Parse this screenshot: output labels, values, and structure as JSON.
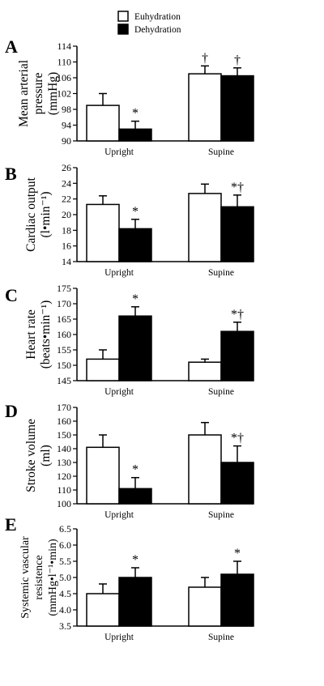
{
  "legend": {
    "euhydration": "Euhydration",
    "dehydration": "Dehydration"
  },
  "colors": {
    "euhydration_fill": "#ffffff",
    "dehydration_fill": "#000000",
    "stroke": "#000000"
  },
  "chart_data": [
    {
      "panel": "A",
      "type": "bar",
      "ylabel": [
        "Mean arterial",
        "pressure",
        "(mmHg)"
      ],
      "categories": [
        "Upright",
        "Supine"
      ],
      "ylim": [
        90,
        114
      ],
      "yticks": [
        90,
        94,
        98,
        102,
        106,
        110,
        114
      ],
      "series": [
        {
          "name": "Euhydration",
          "values": [
            99,
            107
          ],
          "errors": [
            3,
            2
          ]
        },
        {
          "name": "Dehydration",
          "values": [
            93,
            106.5
          ],
          "errors": [
            2,
            2
          ]
        }
      ],
      "annotations": [
        [
          "",
          "†"
        ],
        [
          "*",
          "†"
        ]
      ]
    },
    {
      "panel": "B",
      "type": "bar",
      "ylabel": [
        "Cardiac output",
        "(l•min⁻¹)"
      ],
      "categories": [
        "Upright",
        "Supine"
      ],
      "ylim": [
        14,
        26
      ],
      "yticks": [
        14,
        16,
        18,
        20,
        22,
        24,
        26
      ],
      "series": [
        {
          "name": "Euhydration",
          "values": [
            21.3,
            22.7
          ],
          "errors": [
            1.1,
            1.2
          ]
        },
        {
          "name": "Dehydration",
          "values": [
            18.2,
            21.0
          ],
          "errors": [
            1.2,
            1.5
          ]
        }
      ],
      "annotations": [
        [
          "",
          ""
        ],
        [
          "*",
          "*†"
        ]
      ]
    },
    {
      "panel": "C",
      "type": "bar",
      "ylabel": [
        "Heart rate",
        "(beats•min⁻¹)"
      ],
      "categories": [
        "Upright",
        "Supine"
      ],
      "ylim": [
        145,
        175
      ],
      "yticks": [
        145,
        150,
        155,
        160,
        165,
        170,
        175
      ],
      "series": [
        {
          "name": "Euhydration",
          "values": [
            152,
            151
          ],
          "errors": [
            3,
            1
          ]
        },
        {
          "name": "Dehydration",
          "values": [
            166,
            161
          ],
          "errors": [
            3,
            3
          ]
        }
      ],
      "annotations": [
        [
          "",
          ""
        ],
        [
          "*",
          "*†"
        ]
      ]
    },
    {
      "panel": "D",
      "type": "bar",
      "ylabel": [
        "Stroke volume",
        "(ml)"
      ],
      "categories": [
        "Upright",
        "Supine"
      ],
      "ylim": [
        100,
        170
      ],
      "yticks": [
        100,
        110,
        120,
        130,
        140,
        150,
        160,
        170
      ],
      "series": [
        {
          "name": "Euhydration",
          "values": [
            141,
            150
          ],
          "errors": [
            9,
            9
          ]
        },
        {
          "name": "Dehydration",
          "values": [
            111,
            130
          ],
          "errors": [
            8,
            12
          ]
        }
      ],
      "annotations": [
        [
          "",
          ""
        ],
        [
          "*",
          "*†"
        ]
      ]
    },
    {
      "panel": "E",
      "type": "bar",
      "ylabel": [
        "Systemic vascular",
        "resistence",
        "(mmHg•l⁻¹•min)"
      ],
      "categories": [
        "Upright",
        "Supine"
      ],
      "ylim": [
        3.5,
        6.5
      ],
      "yticks": [
        "3.5",
        "4.0",
        "4.5",
        "5.0",
        "5.5",
        "6.0",
        "6.5"
      ],
      "series": [
        {
          "name": "Euhydration",
          "values": [
            4.5,
            4.7
          ],
          "errors": [
            0.3,
            0.3
          ]
        },
        {
          "name": "Dehydration",
          "values": [
            5.0,
            5.1
          ],
          "errors": [
            0.3,
            0.4
          ]
        }
      ],
      "annotations": [
        [
          "",
          ""
        ],
        [
          "*",
          "*"
        ]
      ]
    }
  ]
}
